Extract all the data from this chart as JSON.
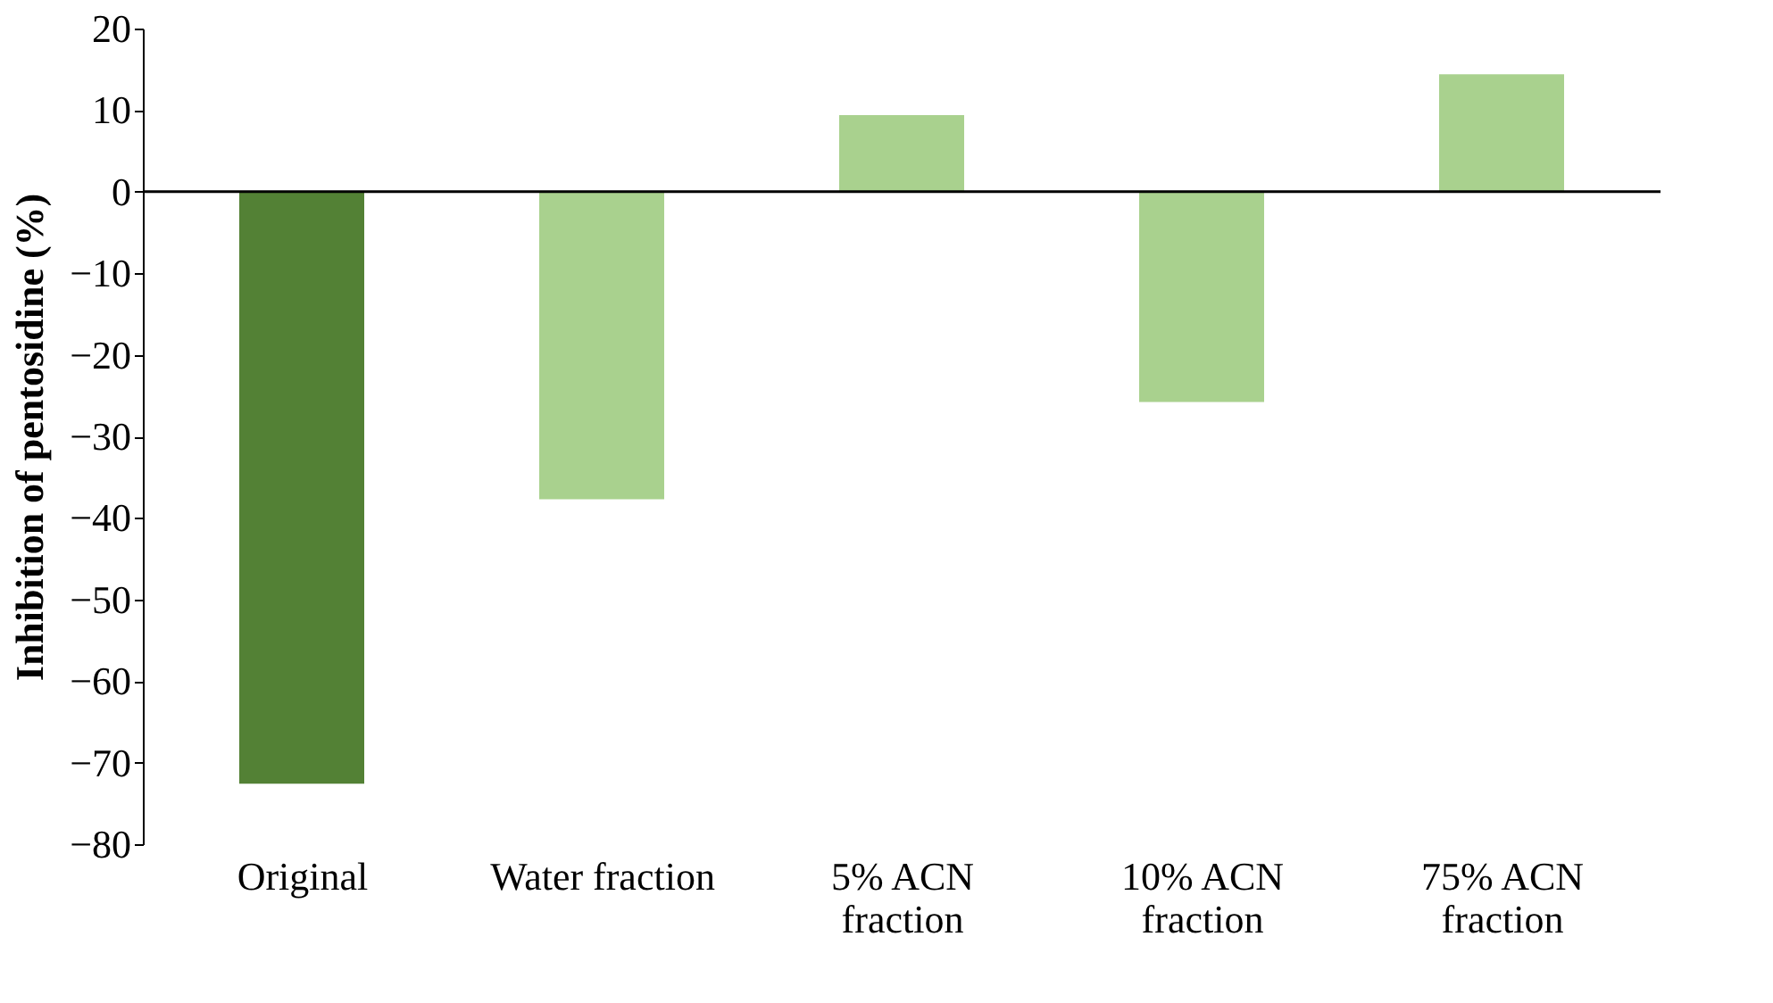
{
  "chart_data": {
    "type": "bar",
    "ylabel": "Inhibition of pentosidine (%)",
    "categories": [
      "Original",
      "Water fraction",
      "5% ACN\nfraction",
      "10% ACN\nfraction",
      "75% ACN\nfraction"
    ],
    "values": [
      -72.6,
      -37.7,
      9.4,
      -25.8,
      14.4
    ],
    "colors": [
      "#538135",
      "#a9d18e",
      "#a9d18e",
      "#a9d18e",
      "#a9d18e"
    ],
    "ylim": [
      -80,
      20
    ],
    "yticks": [
      -80,
      -70,
      -60,
      -50,
      -40,
      -30,
      -20,
      -10,
      0,
      10,
      20
    ],
    "grid": false,
    "legend": false,
    "ref_lines": [
      {
        "axis": "y",
        "value": 0,
        "color": "#000000"
      }
    ]
  }
}
